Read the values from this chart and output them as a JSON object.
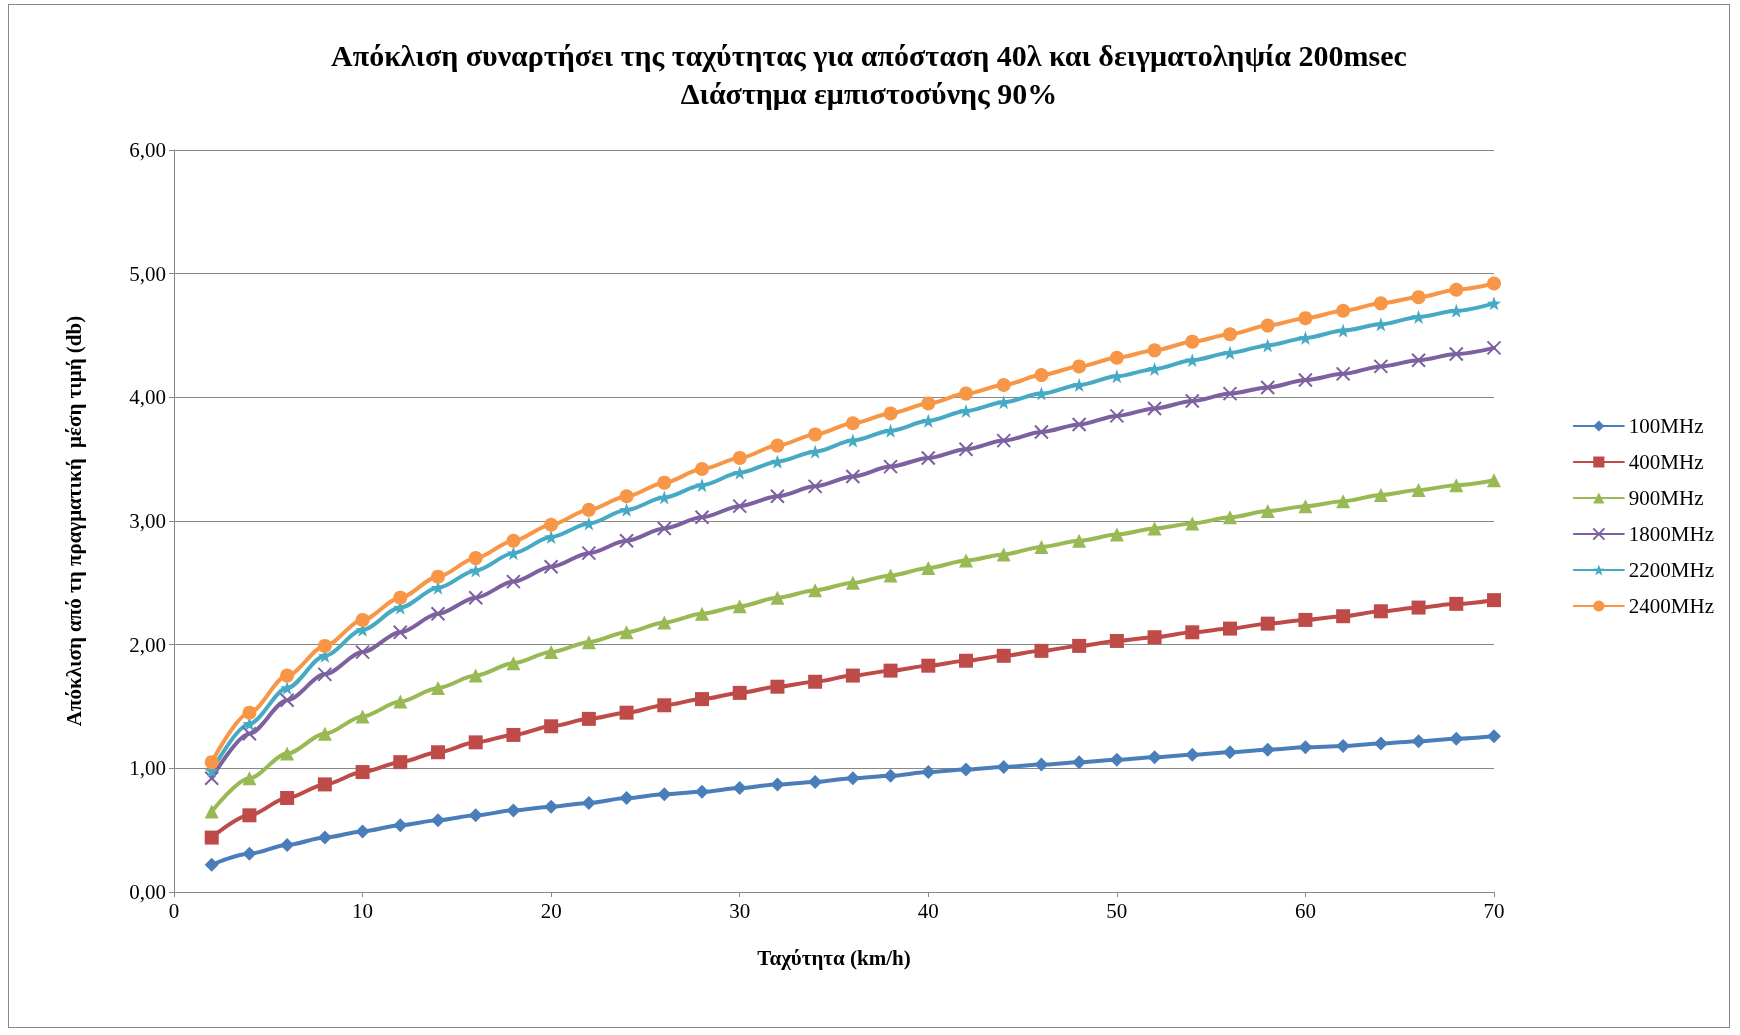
{
  "chart_data": {
    "type": "line",
    "title": "Απόκλιση συναρτήσει της ταχύτητας για απόσταση 40λ και δειγματοληψία 200msec",
    "subtitle": "Διάστημα εμπιστοσύνης 90%",
    "xlabel": "Ταχύτητα (km/h)",
    "ylabel": "Απόκλιση από τη πραγματική  μέση τιμή (db)",
    "x": [
      2,
      4,
      6,
      8,
      10,
      12,
      14,
      16,
      18,
      20,
      22,
      24,
      26,
      28,
      30,
      32,
      34,
      36,
      38,
      40,
      42,
      44,
      46,
      48,
      50,
      52,
      54,
      56,
      58,
      60,
      62,
      64,
      66,
      68,
      70
    ],
    "series": [
      {
        "name": "100MHz",
        "color": "#4a7ebb",
        "marker": "diamond",
        "values": [
          0.22,
          0.31,
          0.38,
          0.44,
          0.49,
          0.54,
          0.58,
          0.62,
          0.66,
          0.69,
          0.72,
          0.76,
          0.79,
          0.81,
          0.84,
          0.87,
          0.89,
          0.92,
          0.94,
          0.97,
          0.99,
          1.01,
          1.03,
          1.05,
          1.07,
          1.09,
          1.11,
          1.13,
          1.15,
          1.17,
          1.18,
          1.2,
          1.22,
          1.24,
          1.26
        ]
      },
      {
        "name": "400MHz",
        "color": "#be4b48",
        "marker": "square",
        "values": [
          0.44,
          0.62,
          0.76,
          0.87,
          0.97,
          1.05,
          1.13,
          1.21,
          1.27,
          1.34,
          1.4,
          1.45,
          1.51,
          1.56,
          1.61,
          1.66,
          1.7,
          1.75,
          1.79,
          1.83,
          1.87,
          1.91,
          1.95,
          1.99,
          2.03,
          2.06,
          2.1,
          2.13,
          2.17,
          2.2,
          2.23,
          2.27,
          2.3,
          2.33,
          2.36
        ]
      },
      {
        "name": "900MHz",
        "color": "#98b954",
        "marker": "triangle",
        "values": [
          0.65,
          0.92,
          1.12,
          1.28,
          1.42,
          1.54,
          1.65,
          1.75,
          1.85,
          1.94,
          2.02,
          2.1,
          2.18,
          2.25,
          2.31,
          2.38,
          2.44,
          2.5,
          2.56,
          2.62,
          2.68,
          2.73,
          2.79,
          2.84,
          2.89,
          2.94,
          2.98,
          3.03,
          3.08,
          3.12,
          3.16,
          3.21,
          3.25,
          3.29,
          3.33
        ]
      },
      {
        "name": "1800MHz",
        "color": "#7d60a0",
        "marker": "cross",
        "values": [
          0.92,
          1.28,
          1.55,
          1.76,
          1.94,
          2.1,
          2.25,
          2.38,
          2.51,
          2.63,
          2.74,
          2.84,
          2.94,
          3.03,
          3.12,
          3.2,
          3.28,
          3.36,
          3.44,
          3.51,
          3.58,
          3.65,
          3.72,
          3.78,
          3.85,
          3.91,
          3.97,
          4.03,
          4.08,
          4.14,
          4.19,
          4.25,
          4.3,
          4.35,
          4.4
        ]
      },
      {
        "name": "2200MHz",
        "color": "#46aac5",
        "marker": "star",
        "values": [
          0.98,
          1.36,
          1.65,
          1.91,
          2.12,
          2.3,
          2.46,
          2.6,
          2.74,
          2.87,
          2.98,
          3.09,
          3.19,
          3.29,
          3.39,
          3.48,
          3.56,
          3.65,
          3.73,
          3.81,
          3.89,
          3.96,
          4.03,
          4.1,
          4.17,
          4.23,
          4.3,
          4.36,
          4.42,
          4.48,
          4.54,
          4.59,
          4.65,
          4.7,
          4.76
        ]
      },
      {
        "name": "2400MHz",
        "color": "#f79646",
        "marker": "circle",
        "values": [
          1.05,
          1.45,
          1.75,
          1.99,
          2.2,
          2.38,
          2.55,
          2.7,
          2.84,
          2.97,
          3.09,
          3.2,
          3.31,
          3.42,
          3.51,
          3.61,
          3.7,
          3.79,
          3.87,
          3.95,
          4.03,
          4.1,
          4.18,
          4.25,
          4.32,
          4.38,
          4.45,
          4.51,
          4.58,
          4.64,
          4.7,
          4.76,
          4.81,
          4.87,
          4.92
        ]
      }
    ],
    "xlim": [
      0,
      70
    ],
    "xticks": [
      0,
      10,
      20,
      30,
      40,
      50,
      60,
      70
    ],
    "ylim": [
      0,
      6
    ],
    "yticks": [
      {
        "value": 0,
        "label": "0,00"
      },
      {
        "value": 1,
        "label": "1,00"
      },
      {
        "value": 2,
        "label": "2,00"
      },
      {
        "value": 3,
        "label": "3,00"
      },
      {
        "value": 4,
        "label": "4,00"
      },
      {
        "value": 5,
        "label": "5,00"
      },
      {
        "value": 6,
        "label": "6,00"
      }
    ],
    "grid": "y",
    "legend": "right",
    "line_style": "solid"
  }
}
